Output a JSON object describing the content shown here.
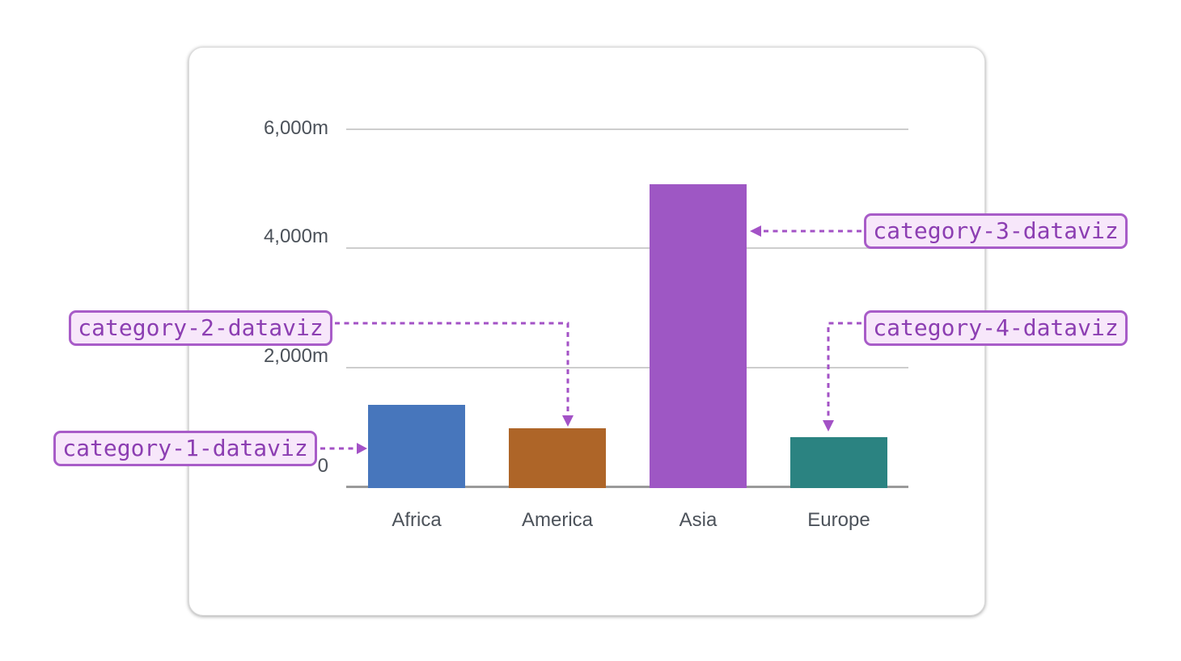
{
  "chart_data": {
    "type": "bar",
    "title": "",
    "categories": [
      "Africa",
      "America",
      "Asia",
      "Europe"
    ],
    "values": [
      1400,
      1000,
      5100,
      850
    ],
    "value_suffix": "m",
    "y_tick_labels": [
      "6,000m",
      "4,000m",
      "2,000m",
      "0"
    ],
    "ylim": [
      0,
      6000
    ],
    "grid": true,
    "legend": false,
    "bar_colors": [
      "#4776BC",
      "#AE6528",
      "#9E57C4",
      "#2B8381"
    ]
  },
  "annotations": {
    "labels": [
      "category-1-dataviz",
      "category-2-dataviz",
      "category-3-dataviz",
      "category-4-dataviz"
    ],
    "targets": [
      "Africa",
      "America",
      "Asia",
      "Europe"
    ],
    "accent": "#A352C6",
    "text_color": "#8C3EB2",
    "bg": "#F7E7FA",
    "border": "#A85CC8"
  }
}
